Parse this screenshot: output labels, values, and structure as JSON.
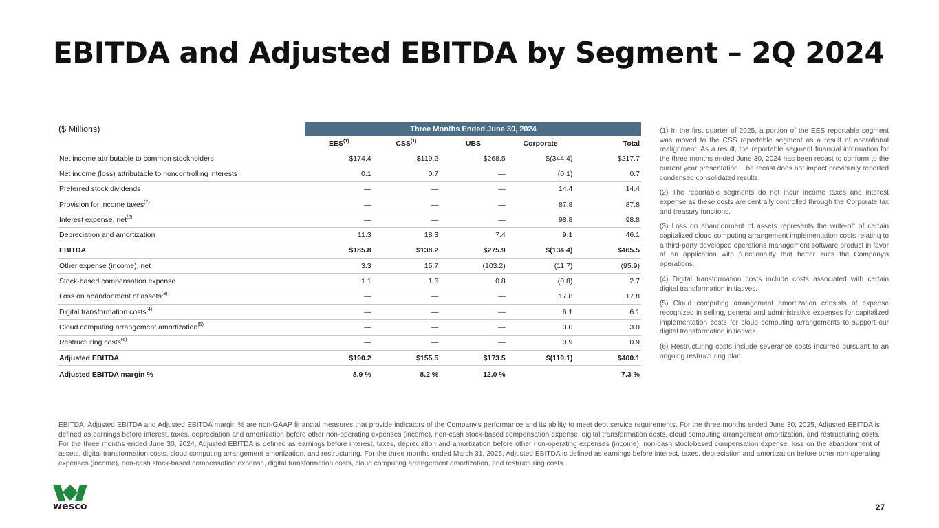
{
  "title": "EBITDA and Adjusted EBITDA by Segment – 2Q 2024",
  "units": "($ Millions)",
  "table": {
    "period": "Three Months Ended June 30, 2024",
    "columns": [
      {
        "label": "EES",
        "sup": "(1)"
      },
      {
        "label": "CSS",
        "sup": "(1)"
      },
      {
        "label": "UBS",
        "sup": ""
      },
      {
        "label": "Corporate",
        "sup": ""
      },
      {
        "label": "Total",
        "sup": ""
      }
    ],
    "rows": [
      {
        "label": "Net income attributable to common stockholders",
        "sup": "",
        "values": [
          "$174.4",
          "$119.2",
          "$268.5",
          "$(344.4)",
          "$217.7"
        ]
      },
      {
        "label": "Net income (loss) attributable to noncontrolling interests",
        "sup": "",
        "values": [
          "0.1",
          "0.7",
          "—",
          "(0.1)",
          "0.7"
        ]
      },
      {
        "label": "Preferred stock dividends",
        "sup": "",
        "values": [
          "—",
          "—",
          "—",
          "14.4",
          "14.4"
        ]
      },
      {
        "label": "Provision for income taxes",
        "sup": "(2)",
        "values": [
          "—",
          "—",
          "—",
          "87.8",
          "87.8"
        ]
      },
      {
        "label": "Interest expense, net",
        "sup": "(2)",
        "values": [
          "—",
          "—",
          "—",
          "98.8",
          "98.8"
        ]
      },
      {
        "label": "Depreciation and amortization",
        "sup": "",
        "values": [
          "11.3",
          "18.3",
          "7.4",
          "9.1",
          "46.1"
        ]
      },
      {
        "label": "EBITDA",
        "sup": "",
        "values": [
          "$185.8",
          "$138.2",
          "$275.9",
          "$(134.4)",
          "$465.5"
        ]
      },
      {
        "label": "Other expense (income), net",
        "sup": "",
        "values": [
          "3.3",
          "15.7",
          "(103.2)",
          "(11.7)",
          "(95.9)"
        ]
      },
      {
        "label": "Stock-based compensation expense",
        "sup": "",
        "values": [
          "1.1",
          "1.6",
          "0.8",
          "(0.8)",
          "2.7"
        ]
      },
      {
        "label": "Loss on abandonment of assets",
        "sup": "(3)",
        "values": [
          "—",
          "—",
          "—",
          "17.8",
          "17.8"
        ]
      },
      {
        "label": "Digital transformation costs",
        "sup": "(4)",
        "values": [
          "—",
          "—",
          "—",
          "6.1",
          "6.1"
        ]
      },
      {
        "label": "Cloud computing arrangement amortization",
        "sup": "(5)",
        "values": [
          "—",
          "—",
          "—",
          "3.0",
          "3.0"
        ]
      },
      {
        "label": "Restructuring costs",
        "sup": "(6)",
        "values": [
          "—",
          "—",
          "—",
          "0.9",
          "0.9"
        ]
      },
      {
        "label": "Adjusted EBITDA",
        "sup": "",
        "values": [
          "$190.2",
          "$155.5",
          "$173.5",
          "$(119.1)",
          "$400.1"
        ]
      },
      {
        "label": "Adjusted EBITDA margin %",
        "sup": "",
        "values": [
          "8.9 %",
          "8.2 %",
          "12.0 %",
          "",
          "7.3 %"
        ]
      }
    ]
  },
  "notes": [
    "(1)   In the first quarter of 2025, a portion of the EES reportable segment was moved to the CSS reportable segment as a result of operational realignment. As a result, the reportable segment financial information for the three months ended June 30, 2024 has been recast to conform to the current year presentation. The recast does not impact previously reported condensed consolidated results.",
    "(2)  The reportable segments do not incur income taxes and interest expense as these costs are centrally controlled through the Corporate tax and treasury functions.",
    "(3)  Loss on abandonment of assets represents the write-off of certain capitalized cloud computing arrangement implementation costs relating to a third-party developed operations management software product in favor of an application with functionality that better suits the Company's operations.",
    "(4)   Digital transformation costs include costs associated with certain digital transformation initiatives.",
    "(5)  Cloud computing arrangement amortization consists of expense recognized in selling, general and administrative expenses for capitalized implementation costs for cloud computing arrangements to support our digital transformation initiatives.",
    "(6)  Restructuring costs include severance costs incurred pursuant to an ongoing restructuring plan."
  ],
  "footnote": "EBITDA, Adjusted EBITDA and Adjusted EBITDA margin % are non-GAAP financial measures that provide indicators of the Company's performance and its ability to meet debt service requirements. For the three months ended June 30, 2025, Adjusted EBITDA is defined as earnings before interest, taxes, depreciation and amortization before other non-operating expenses (income), non-cash stock-based compensation expense, digital transformation costs, cloud computing arrangement amortization, and restructuring costs. For the three months ended June 30, 2024, Adjusted EBITDA is defined as earnings before interest, taxes, depreciation and amortization before other non-operating expenses (income), non-cash stock-based compensation expense, loss on the abandonment of assets, digital transformation costs, cloud computing arrangement amortization, and restructuring. For the three months ended March 31, 2025, Adjusted EBITDA is defined as earnings before interest, taxes, depreciation and amortization before other non-operating expenses (income), non-cash stock-based compensation expense, digital transformation costs, cloud computing arrangement amortization, and restructuring costs.",
  "logo": {
    "text": "wesco",
    "color": "#1f8a3c"
  },
  "page_number": "27"
}
